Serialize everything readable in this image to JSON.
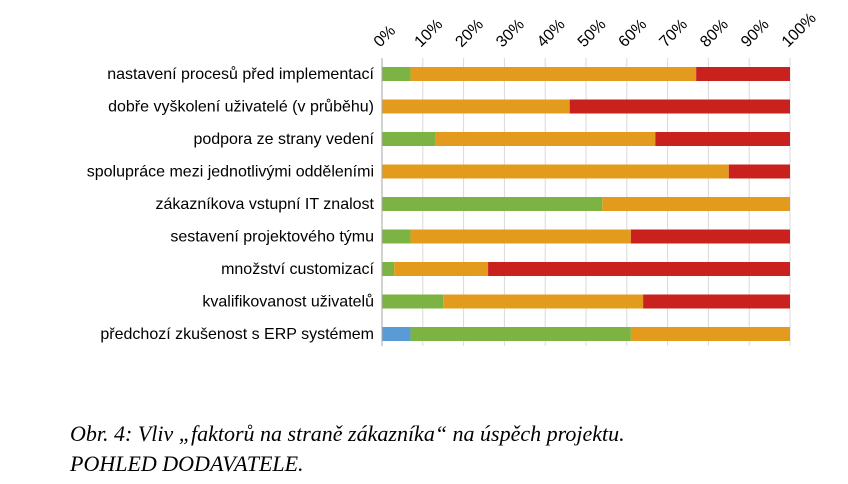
{
  "chart_data": {
    "type": "bar",
    "orientation": "horizontal",
    "stacked": "percent",
    "categories": [
      "nastavení procesů před implementací",
      "dobře vyškolení uživatelé (v průběhu)",
      "podpora ze strany vedení",
      "spolupráce mezi jednotlivými odděleními",
      "zákazníkova vstupní IT znalost",
      "sestavení projektového týmu",
      "množství customizací",
      "kvalifikovanost uživatelů",
      "předchozí zkušenost s ERP systémem"
    ],
    "series": [
      {
        "color": "#5b9bd5",
        "values": [
          0,
          0,
          0,
          0,
          0,
          0,
          0,
          0,
          7
        ]
      },
      {
        "color": "#7cb342",
        "values": [
          7,
          0,
          13,
          0,
          54,
          7,
          3,
          15,
          54
        ]
      },
      {
        "color": "#e39b1e",
        "values": [
          70,
          46,
          54,
          85,
          46,
          54,
          23,
          49,
          39
        ]
      },
      {
        "color": "#c9211e",
        "values": [
          23,
          54,
          33,
          15,
          0,
          39,
          74,
          36,
          0
        ]
      }
    ],
    "x_ticks": [
      "0%",
      "10%",
      "20%",
      "30%",
      "40%",
      "50%",
      "60%",
      "70%",
      "80%",
      "90%",
      "100%"
    ],
    "xlim": [
      0,
      100
    ],
    "grid": true,
    "legend": "none"
  },
  "caption": {
    "line1": "Obr. 4: Vliv „faktorů na straně zákazníka“ na úspěch projektu.",
    "line2": "POHLED DODAVATELE."
  }
}
